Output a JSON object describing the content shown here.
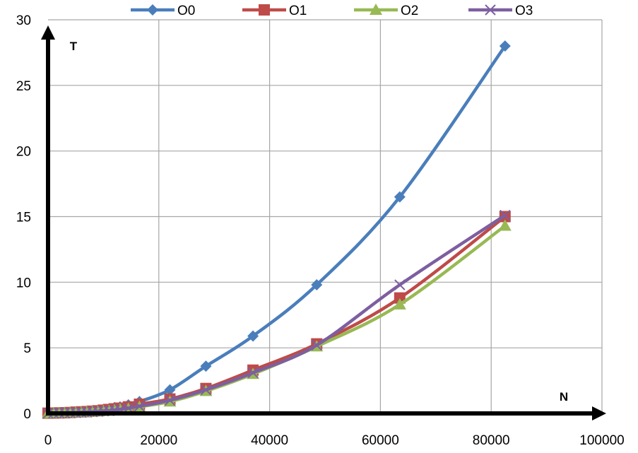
{
  "chart_data": {
    "type": "line",
    "xlabel": "N",
    "ylabel": "T",
    "xlim": [
      0,
      100000
    ],
    "ylim": [
      0,
      30
    ],
    "x_ticks": [
      0,
      20000,
      40000,
      60000,
      80000,
      100000
    ],
    "y_ticks": [
      0,
      5,
      10,
      15,
      20,
      25,
      30
    ],
    "grid": true,
    "legend_position": "top",
    "series": [
      {
        "name": "O0",
        "color": "#4a7ebb",
        "marker": "diamond",
        "points": [
          [
            0,
            0.02
          ],
          [
            1000,
            0.03
          ],
          [
            2000,
            0.04
          ],
          [
            3000,
            0.05
          ],
          [
            4000,
            0.07
          ],
          [
            5000,
            0.1
          ],
          [
            6000,
            0.13
          ],
          [
            7000,
            0.16
          ],
          [
            8000,
            0.2
          ],
          [
            9000,
            0.25
          ],
          [
            10000,
            0.3
          ],
          [
            11000,
            0.35
          ],
          [
            12000,
            0.45
          ],
          [
            13000,
            0.5
          ],
          [
            14500,
            0.65
          ],
          [
            16500,
            0.9
          ],
          [
            22000,
            1.8
          ],
          [
            28500,
            3.6
          ],
          [
            37000,
            5.9
          ],
          [
            48500,
            9.8
          ],
          [
            63500,
            16.5
          ],
          [
            82500,
            28.0
          ]
        ]
      },
      {
        "name": "O1",
        "color": "#be4b48",
        "marker": "square",
        "points": [
          [
            0,
            0.02
          ],
          [
            1000,
            0.03
          ],
          [
            2000,
            0.04
          ],
          [
            3000,
            0.05
          ],
          [
            4000,
            0.07
          ],
          [
            5000,
            0.1
          ],
          [
            6000,
            0.12
          ],
          [
            7000,
            0.14
          ],
          [
            8000,
            0.17
          ],
          [
            9000,
            0.2
          ],
          [
            10000,
            0.25
          ],
          [
            11000,
            0.3
          ],
          [
            12000,
            0.35
          ],
          [
            13000,
            0.4
          ],
          [
            14500,
            0.5
          ],
          [
            16500,
            0.7
          ],
          [
            22000,
            1.1
          ],
          [
            28500,
            1.9
          ],
          [
            37000,
            3.3
          ],
          [
            48500,
            5.3
          ],
          [
            63500,
            8.8
          ],
          [
            82500,
            15.0
          ]
        ]
      },
      {
        "name": "O2",
        "color": "#98b954",
        "marker": "triangle",
        "points": [
          [
            0,
            0.01
          ],
          [
            1000,
            0.02
          ],
          [
            2000,
            0.03
          ],
          [
            3000,
            0.04
          ],
          [
            4000,
            0.05
          ],
          [
            5000,
            0.07
          ],
          [
            6000,
            0.09
          ],
          [
            7000,
            0.11
          ],
          [
            8000,
            0.13
          ],
          [
            9000,
            0.15
          ],
          [
            10000,
            0.18
          ],
          [
            11000,
            0.2
          ],
          [
            12000,
            0.25
          ],
          [
            13000,
            0.3
          ],
          [
            14500,
            0.35
          ],
          [
            16500,
            0.5
          ],
          [
            22000,
            0.9
          ],
          [
            28500,
            1.7
          ],
          [
            37000,
            3.0
          ],
          [
            48500,
            5.1
          ],
          [
            63500,
            8.3
          ],
          [
            82500,
            14.3
          ]
        ]
      },
      {
        "name": "O3",
        "color": "#7d5fa0",
        "marker": "x",
        "points": [
          [
            0,
            0.01
          ],
          [
            1000,
            0.02
          ],
          [
            2000,
            0.03
          ],
          [
            3000,
            0.04
          ],
          [
            4000,
            0.05
          ],
          [
            5000,
            0.06
          ],
          [
            6000,
            0.08
          ],
          [
            7000,
            0.1
          ],
          [
            8000,
            0.12
          ],
          [
            9000,
            0.15
          ],
          [
            10000,
            0.18
          ],
          [
            11000,
            0.2
          ],
          [
            12000,
            0.25
          ],
          [
            13000,
            0.3
          ],
          [
            14500,
            0.4
          ],
          [
            16500,
            0.55
          ],
          [
            22000,
            1.0
          ],
          [
            28500,
            1.8
          ],
          [
            37000,
            3.1
          ],
          [
            48500,
            5.2
          ],
          [
            63500,
            9.8
          ],
          [
            82500,
            15.1
          ]
        ]
      }
    ]
  }
}
